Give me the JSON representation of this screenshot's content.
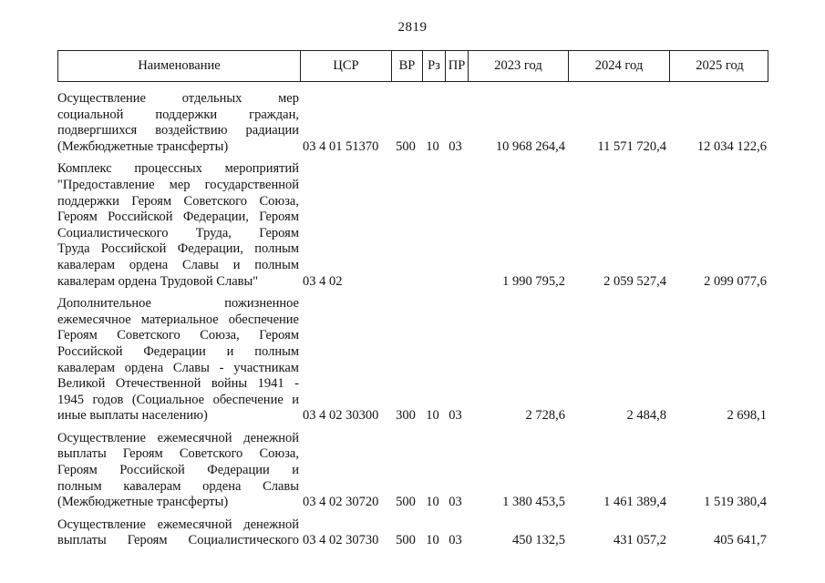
{
  "page": {
    "number": "2819"
  },
  "table": {
    "headers": {
      "name": "Наименование",
      "csr": "ЦСР",
      "vr": "ВР",
      "rz": "Рз",
      "pr": "ПР",
      "y2023": "2023 год",
      "y2024": "2024 год",
      "y2025": "2025 год"
    },
    "rows": [
      {
        "name_lines": [
          "Осуществление отдельных мер",
          "социальной поддержки граждан,",
          "подвергшихся воздействию радиации",
          "(Межбюджетные трансферты)"
        ],
        "last_line_flush": true,
        "csr": "03 4 01 51370",
        "vr": "500",
        "rz": "10",
        "pr": "03",
        "y2023": "10 968 264,4",
        "y2024": "11 571 720,4",
        "y2025": "12 034 122,6"
      },
      {
        "name_lines": [
          "Комплекс процессных мероприятий",
          "\"Предоставление мер государственной",
          "поддержки Героям Советского Союза,",
          "Героям Российской Федерации, Героям",
          "Социалистического Труда, Героям",
          "Труда Российской Федерации, полным",
          "кавалерам ордена Славы и полным",
          "кавалерам ордена Трудовой Славы\""
        ],
        "last_line_flush": true,
        "csr": "03 4 02",
        "vr": "",
        "rz": "",
        "pr": "",
        "y2023": "1 990 795,2",
        "y2024": "2 059 527,4",
        "y2025": "2 099 077,6"
      },
      {
        "name_lines": [
          "Дополнительное пожизненное",
          "ежемесячное материальное обеспечение",
          "Героям Советского Союза, Героям",
          "Российской Федерации и полным",
          "кавалерам ордена Славы - участникам",
          "Великой Отечественной войны 1941 -",
          "1945 годов (Социальное обеспечение и",
          "иные выплаты населению)"
        ],
        "last_line_flush": true,
        "csr": "03 4 02 30300",
        "vr": "300",
        "rz": "10",
        "pr": "03",
        "y2023": "2 728,6",
        "y2024": "2 484,8",
        "y2025": "2 698,1"
      },
      {
        "name_lines": [
          "Осуществление ежемесячной денежной",
          "выплаты Героям Советского Союза,",
          "Героям Российской Федерации и",
          "полным кавалерам ордена Славы",
          "(Межбюджетные трансферты)"
        ],
        "last_line_flush": true,
        "csr": "03 4 02 30720",
        "vr": "500",
        "rz": "10",
        "pr": "03",
        "y2023": "1 380 453,5",
        "y2024": "1 461 389,4",
        "y2025": "1 519 380,4"
      },
      {
        "name_lines": [
          "Осуществление ежемесячной денежной",
          "выплаты Героям Социалистического"
        ],
        "last_line_flush": false,
        "csr": "03 4 02 30730",
        "vr": "500",
        "rz": "10",
        "pr": "03",
        "y2023": "450 132,5",
        "y2024": "431 057,2",
        "y2025": "405 641,7"
      }
    ]
  }
}
